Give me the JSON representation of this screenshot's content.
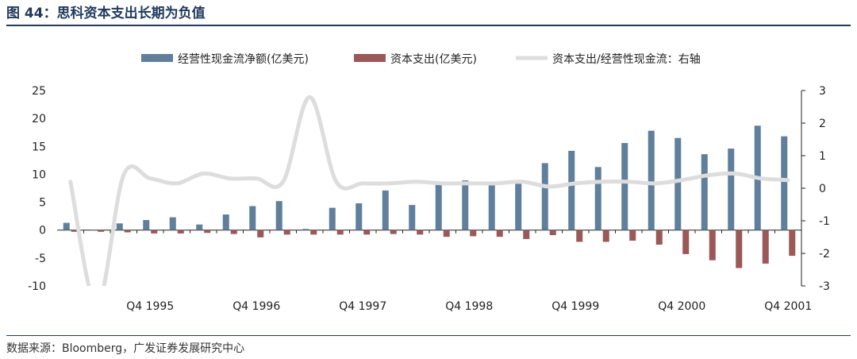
{
  "figure_title": "图 44：思科资本支出长期为负值",
  "source": "数据来源：Bloomberg，广发证券发展研究中心",
  "chart_data": {
    "type": "bar",
    "categories": [
      "Q1 1995",
      "Q2 1995",
      "Q3 1995",
      "Q4 1995",
      "Q1 1996",
      "Q2 1996",
      "Q3 1996",
      "Q4 1996",
      "Q1 1997",
      "Q2 1997",
      "Q3 1997",
      "Q4 1997",
      "Q1 1998",
      "Q2 1998",
      "Q3 1998",
      "Q4 1998",
      "Q1 1999",
      "Q2 1999",
      "Q3 1999",
      "Q4 1999",
      "Q1 2000",
      "Q2 2000",
      "Q3 2000",
      "Q4 2000",
      "Q1 2001",
      "Q2 2001",
      "Q3 2001",
      "Q4 2001"
    ],
    "x_tick_labels": [
      "Q4 1995",
      "Q4 1996",
      "Q4 1997",
      "Q4 1998",
      "Q4 1999",
      "Q4 2000",
      "Q4 2001"
    ],
    "x_tick_indices": [
      3,
      7,
      11,
      15,
      19,
      23,
      27
    ],
    "series": [
      {
        "name": "经营性现金流净额(亿美元)",
        "axis": "left",
        "color": "#5f7f9c",
        "values": [
          1.3,
          0.1,
          1.2,
          1.8,
          2.3,
          1.0,
          2.8,
          4.3,
          5.2,
          0.2,
          4.0,
          4.8,
          7.1,
          4.5,
          8.2,
          8.9,
          8.2,
          8.3,
          12.0,
          14.2,
          11.3,
          15.6,
          17.8,
          16.5,
          13.6,
          14.6,
          18.7,
          16.8
        ]
      },
      {
        "name": "资本支出(亿美元)",
        "axis": "left",
        "color": "#9c5757",
        "values": [
          -0.3,
          -0.3,
          -0.4,
          -0.6,
          -0.6,
          -0.5,
          -0.7,
          -1.3,
          -0.8,
          -0.8,
          -0.8,
          -0.8,
          -0.7,
          -0.8,
          -1.2,
          -1.1,
          -1.2,
          -1.6,
          -0.9,
          -2.1,
          -2.1,
          -1.9,
          -2.6,
          -4.3,
          -5.4,
          -6.8,
          -6.0,
          -4.6
        ]
      },
      {
        "name": "资本支出/经营性现金流：右轴",
        "axis": "right",
        "color": "#dddddd",
        "type": "line",
        "values": [
          0.2,
          -3.6,
          0.4,
          0.3,
          0.15,
          0.45,
          0.3,
          0.3,
          0.2,
          2.8,
          0.2,
          0.15,
          0.15,
          0.2,
          0.15,
          0.15,
          0.15,
          0.2,
          0.05,
          0.15,
          0.2,
          0.2,
          0.15,
          0.25,
          0.4,
          0.45,
          0.3,
          0.25
        ]
      }
    ],
    "y_left": {
      "ylim": [
        -10,
        25
      ],
      "ticks": [
        -10,
        -5,
        0,
        5,
        10,
        15,
        20,
        25
      ]
    },
    "y_right": {
      "ylim": [
        -3,
        3
      ],
      "ticks": [
        -3,
        -2,
        -1,
        0,
        1,
        2,
        3
      ]
    },
    "legend_position": "top",
    "grid": false
  }
}
